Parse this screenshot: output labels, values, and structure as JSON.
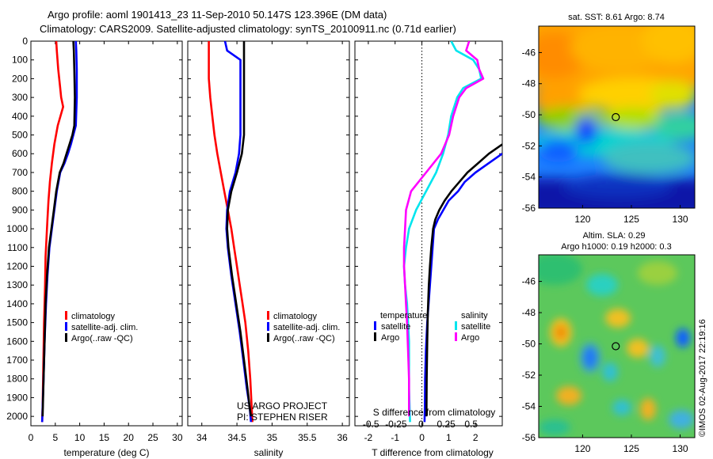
{
  "title_line1": "Argo profile: aoml 1901413_23 11-Sep-2010 50.147S 123.396E (DM data)",
  "title_line2": "Climatology: CARS2009. Satellite-adjusted climatology: synTS_20100911.nc (0.71d earlier)",
  "project_line1": "US ARGO PROJECT",
  "project_line2": "PI: STEPHEN RISER",
  "imos_stamp": "©IMOS 02-Aug-2017 22:19:16",
  "colors": {
    "red": "#ff0000",
    "blue": "#0000ff",
    "black": "#000000",
    "cyan": "#00e5ee",
    "magenta": "#ff00ff"
  },
  "chart_data": [
    {
      "type": "line",
      "id": "temperature",
      "xlabel": "temperature (deg C)",
      "ylabel": "",
      "xlim": [
        0,
        31
      ],
      "ylim": [
        0,
        2050
      ],
      "xticks": [
        "0",
        "5",
        "10",
        "15",
        "20",
        "25",
        "30"
      ],
      "yticks": [
        "0",
        "100",
        "200",
        "300",
        "400",
        "500",
        "600",
        "700",
        "800",
        "900",
        "1000",
        "1100",
        "1200",
        "1300",
        "1400",
        "1500",
        "1600",
        "1700",
        "1800",
        "1900",
        "2000"
      ],
      "legend": [
        "climatology",
        "satellite-adj. clim.",
        "Argo(..raw -QC)"
      ],
      "series": [
        {
          "name": "climatology",
          "color": "red",
          "x": [
            5.2,
            5.3,
            5.6,
            6.0,
            6.2,
            6.6,
            5.5,
            4.8,
            4.3,
            3.9,
            3.6,
            3.4,
            3.2,
            3.0,
            2.9,
            2.7,
            2.6,
            2.5,
            2.4,
            2.3
          ],
          "y": [
            0,
            50,
            150,
            250,
            300,
            350,
            450,
            550,
            650,
            750,
            850,
            950,
            1050,
            1150,
            1300,
            1500,
            1650,
            1800,
            1950,
            2030
          ]
        },
        {
          "name": "satellite-adj. clim.",
          "color": "blue",
          "x": [
            9.2,
            9.3,
            9.4,
            9.4,
            9.2,
            8.7,
            8.2,
            7.6,
            6.9,
            6.0,
            5.3,
            4.8,
            4.3,
            3.8,
            3.4,
            3.1,
            2.8,
            2.6,
            2.3
          ],
          "y": [
            0,
            50,
            150,
            300,
            450,
            500,
            550,
            600,
            650,
            700,
            800,
            900,
            1000,
            1100,
            1250,
            1400,
            1600,
            1800,
            2030
          ]
        },
        {
          "name": "Argo(..raw -QC)",
          "color": "black",
          "x": [
            8.7,
            8.8,
            8.9,
            9.0,
            8.9,
            8.5,
            7.9,
            7.3,
            6.7,
            5.9,
            5.2,
            4.7,
            4.2,
            3.7,
            3.3,
            3.0,
            2.8,
            2.6,
            2.4
          ],
          "y": [
            0,
            50,
            150,
            300,
            450,
            500,
            550,
            600,
            650,
            700,
            800,
            900,
            1000,
            1100,
            1250,
            1400,
            1600,
            1800,
            2000
          ]
        }
      ]
    },
    {
      "type": "line",
      "id": "salinity",
      "xlabel": "salinity",
      "ylabel": "",
      "xlim": [
        33.8,
        36.1
      ],
      "ylim": [
        0,
        2050
      ],
      "xticks": [
        "34",
        "34.5",
        "35",
        "35.5",
        "36"
      ],
      "legend": [
        "climatology",
        "satellite-adj. clim.",
        "Argo(..raw -QC)"
      ],
      "series": [
        {
          "name": "climatology",
          "color": "red",
          "x": [
            34.1,
            34.1,
            34.1,
            34.12,
            34.15,
            34.18,
            34.22,
            34.27,
            34.32,
            34.37,
            34.42,
            34.46,
            34.5,
            34.54,
            34.58,
            34.62,
            34.66,
            34.69,
            34.72
          ],
          "y": [
            0,
            100,
            200,
            300,
            400,
            500,
            600,
            700,
            800,
            900,
            1000,
            1100,
            1200,
            1300,
            1400,
            1500,
            1650,
            1800,
            2030
          ]
        },
        {
          "name": "satellite-adj. clim.",
          "color": "blue",
          "x": [
            34.33,
            34.36,
            34.55,
            34.55,
            34.55,
            34.53,
            34.48,
            34.4,
            34.36,
            34.35,
            34.37,
            34.42,
            34.48,
            34.54,
            34.59,
            34.64,
            34.68,
            34.7
          ],
          "y": [
            0,
            50,
            100,
            150,
            500,
            600,
            700,
            800,
            900,
            1000,
            1100,
            1250,
            1400,
            1550,
            1700,
            1850,
            1950,
            2030
          ]
        },
        {
          "name": "Argo(..raw -QC)",
          "color": "black",
          "x": [
            34.6,
            34.6,
            34.6,
            34.57,
            34.5,
            34.42,
            34.37,
            34.36,
            34.38,
            34.43,
            34.49,
            34.55,
            34.6,
            34.65,
            34.68,
            34.7
          ],
          "y": [
            0,
            200,
            500,
            600,
            700,
            800,
            900,
            1000,
            1100,
            1250,
            1400,
            1550,
            1700,
            1850,
            1950,
            2000
          ]
        }
      ]
    },
    {
      "type": "line",
      "id": "difference",
      "xlabel": "T difference from climatology",
      "xlabel_top": "S difference from climatology",
      "ylabel": "",
      "xlim": [
        -2.5,
        3.0
      ],
      "ylim": [
        0,
        2050
      ],
      "xticks": [
        "-2",
        "-1",
        "0",
        "1",
        "2"
      ],
      "s_xlim": [
        -0.66,
        0.81
      ],
      "s_xticks": [
        "-0.5",
        "-0.25",
        "0",
        "0.25",
        "0.5"
      ],
      "legend_temperature_title": "temperature",
      "legend_salinity_title": "salinity",
      "legend_temperature": [
        "satellite",
        "Argo"
      ],
      "legend_salinity": [
        "satellite",
        "Argo"
      ],
      "series": [
        {
          "name": "satellite",
          "group": "salinity",
          "color": "cyan",
          "x": [
            0.3,
            0.35,
            0.52,
            0.58,
            0.6,
            0.42,
            0.36,
            0.3,
            0.27,
            0.22,
            0.15,
            0.05,
            -0.05,
            -0.12,
            -0.15,
            -0.17,
            -0.16,
            -0.14,
            -0.13,
            -0.12,
            -0.12,
            -0.12,
            -0.11
          ],
          "y": [
            0,
            50,
            100,
            150,
            200,
            250,
            300,
            400,
            500,
            600,
            700,
            800,
            900,
            1000,
            1100,
            1200,
            1300,
            1400,
            1500,
            1600,
            1700,
            1850,
            2030
          ]
        },
        {
          "name": "Argo",
          "group": "salinity",
          "color": "magenta",
          "x": [
            0.48,
            0.45,
            0.56,
            0.58,
            0.62,
            0.45,
            0.38,
            0.32,
            0.28,
            0.2,
            0.05,
            -0.1,
            -0.15,
            -0.16,
            -0.17,
            -0.17,
            -0.16,
            -0.15,
            -0.14,
            -0.13,
            -0.12,
            -0.12
          ],
          "y": [
            0,
            50,
            100,
            150,
            200,
            250,
            300,
            400,
            500,
            600,
            700,
            800,
            900,
            1000,
            1100,
            1200,
            1300,
            1400,
            1500,
            1650,
            1800,
            2000
          ]
        },
        {
          "name": "satellite",
          "group": "temperature",
          "color": "blue",
          "x": [
            3.0,
            2.5,
            2.0,
            1.6,
            1.35,
            1.0,
            0.8,
            0.6,
            0.45,
            0.4,
            0.35,
            0.3,
            0.25,
            0.2,
            0.15,
            0.12,
            0.11,
            0.1
          ],
          "y": [
            600,
            650,
            700,
            750,
            800,
            850,
            900,
            950,
            1000,
            1100,
            1200,
            1300,
            1400,
            1500,
            1650,
            1800,
            1950,
            2030
          ]
        },
        {
          "name": "Argo",
          "group": "temperature",
          "color": "black",
          "x": [
            3.0,
            2.5,
            2.1,
            1.7,
            1.4,
            1.1,
            0.85,
            0.65,
            0.5,
            0.42,
            0.35,
            0.3,
            0.26,
            0.22,
            0.2,
            0.18,
            0.17
          ],
          "y": [
            550,
            600,
            650,
            700,
            750,
            800,
            850,
            900,
            950,
            1000,
            1100,
            1200,
            1300,
            1450,
            1600,
            1800,
            2000
          ]
        }
      ]
    },
    {
      "type": "heatmap",
      "id": "sst-map",
      "title": "sat. SST: 8.61 Argo: 8.74",
      "xlim": [
        115.5,
        131.5
      ],
      "ylim": [
        -56,
        -44.3
      ],
      "xticks": [
        "120",
        "125",
        "130"
      ],
      "yticks": [
        "-46",
        "-48",
        "-50",
        "-52",
        "-54",
        "-56"
      ],
      "marker": {
        "lon": 123.4,
        "lat": -50.15
      }
    },
    {
      "type": "heatmap",
      "id": "sla-map",
      "title": "Altim. SLA: 0.29",
      "subtitle": "Argo h1000: 0.19 h2000: 0.3",
      "xlim": [
        115.5,
        131.5
      ],
      "ylim": [
        -56,
        -44.3
      ],
      "xticks": [
        "120",
        "125",
        "130"
      ],
      "yticks": [
        "-46",
        "-48",
        "-50",
        "-52",
        "-54",
        "-56"
      ],
      "marker": {
        "lon": 123.4,
        "lat": -50.15
      }
    }
  ]
}
